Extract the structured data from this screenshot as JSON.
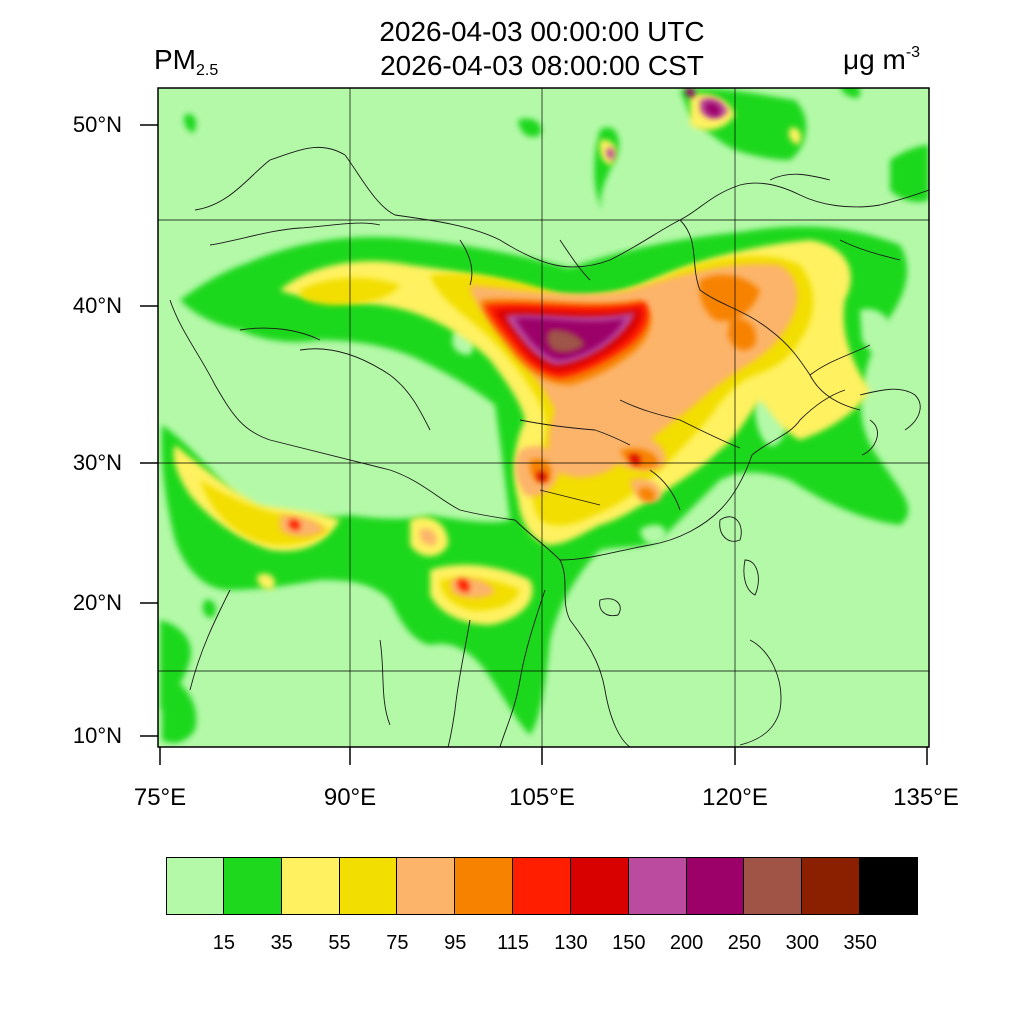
{
  "header": {
    "title_utc": "2026-04-03 00:00:00 UTC",
    "title_cst": "2026-04-03 08:00:00 CST",
    "variable_main": "PM",
    "variable_sub": "2.5",
    "unit_main": "μg m",
    "unit_sup": "-3"
  },
  "map": {
    "lat_labels": [
      "50°N",
      "40°N",
      "30°N",
      "20°N",
      "10°N"
    ],
    "lon_labels": [
      "75°E",
      "90°E",
      "105°E",
      "120°E",
      "135°E"
    ],
    "background_color": "#b4f9a8"
  },
  "colorbar": {
    "colors": [
      "#b4f9a8",
      "#1ed81e",
      "#fff160",
      "#f2de00",
      "#fcb46a",
      "#f78200",
      "#ff1e00",
      "#d90000",
      "#bb4b9e",
      "#9c0069",
      "#9f5446",
      "#8b2000",
      "#000000"
    ],
    "ticks": [
      "15",
      "35",
      "55",
      "75",
      "95",
      "115",
      "130",
      "150",
      "200",
      "250",
      "300",
      "350"
    ]
  }
}
